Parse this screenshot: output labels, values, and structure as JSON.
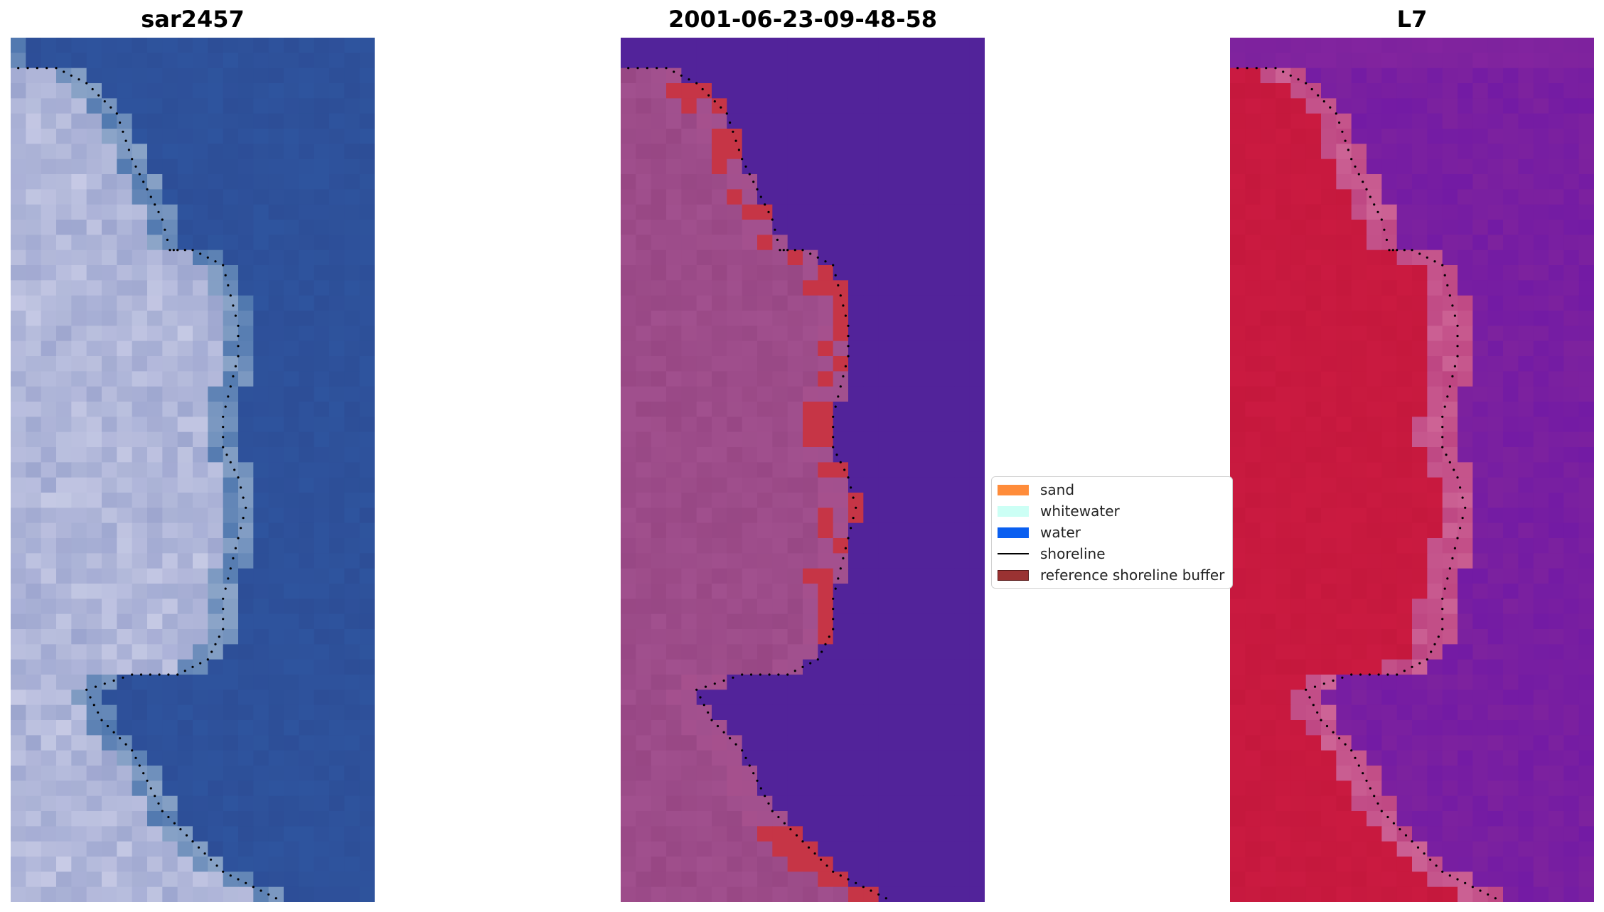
{
  "panels": [
    {
      "title": "sar2457",
      "style": "rgb"
    },
    {
      "title": "2001-06-23-09-48-58",
      "style": "classified"
    },
    {
      "title": "L7",
      "style": "index"
    }
  ],
  "legend": {
    "items": [
      {
        "label": "sand",
        "type": "patch",
        "color": "#ff8c3a"
      },
      {
        "label": "whitewater",
        "type": "patch",
        "color": "#ccfff5"
      },
      {
        "label": "water",
        "type": "patch",
        "color": "#0a5ff0"
      },
      {
        "label": "shoreline",
        "type": "line",
        "color": "#000000"
      },
      {
        "label": "reference shoreline buffer",
        "type": "patch",
        "color": "#9a3232"
      }
    ]
  },
  "colors": {
    "rgb_water": "#2d4e97",
    "rgb_land": "#a9b0d6",
    "class_water": "#52239a",
    "class_land": "#a1508e",
    "class_buffer": "#c63546",
    "index_water": "#7d229e",
    "index_land": "#c5183d",
    "shoreline": "#000000"
  }
}
